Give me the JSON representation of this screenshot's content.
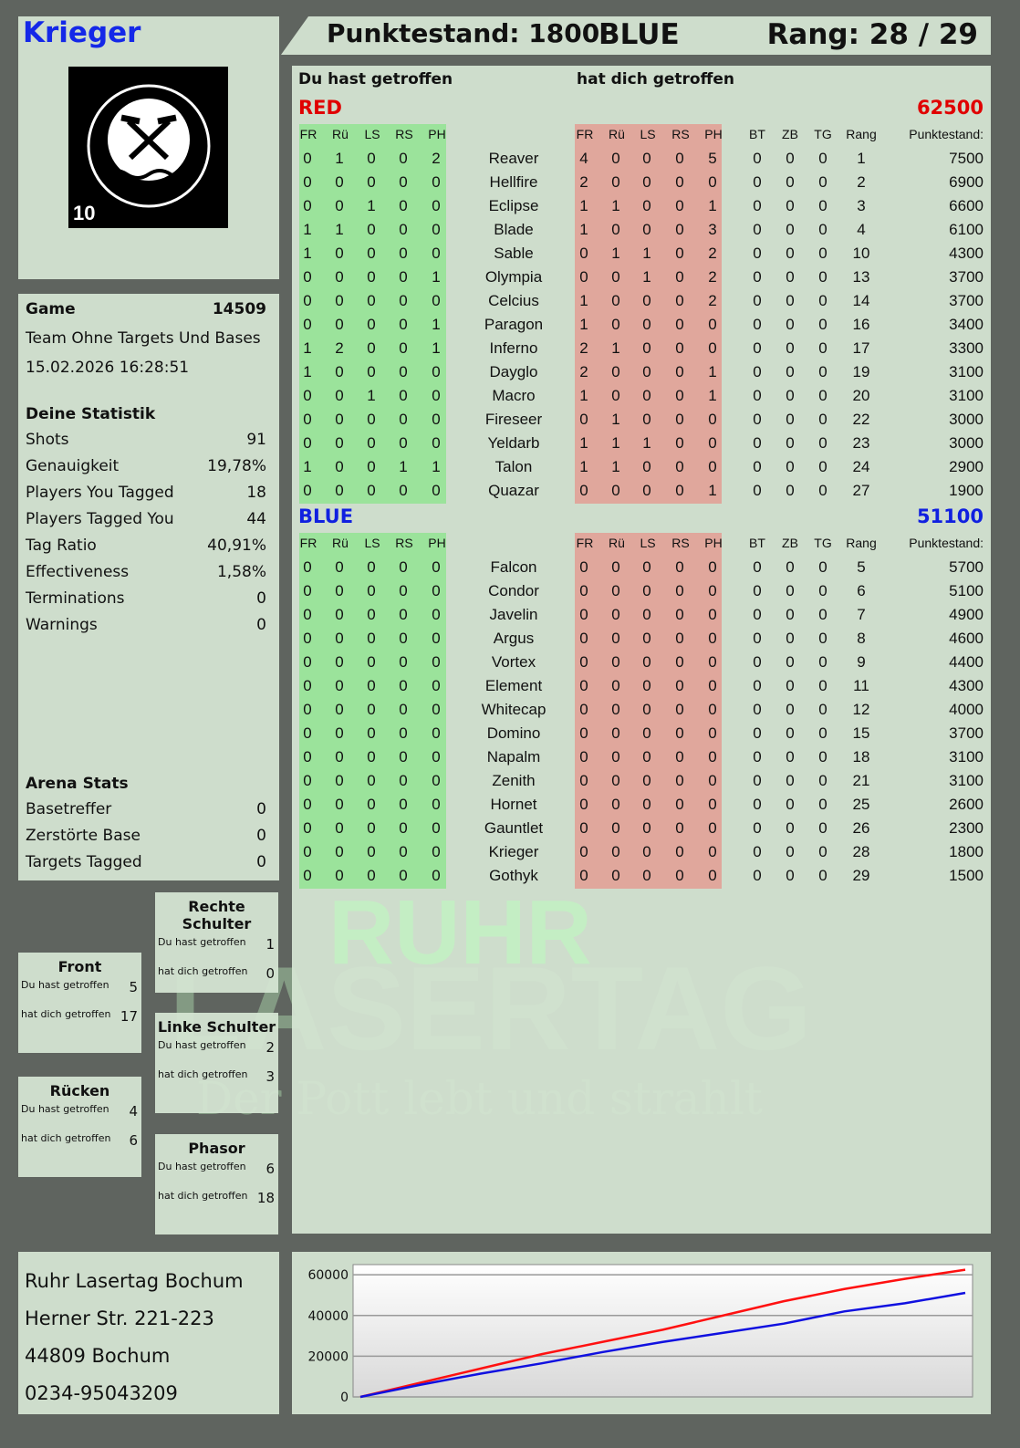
{
  "player": {
    "name": "Krieger",
    "logo_text": "RUHR LASERTAG",
    "logo_number": "10"
  },
  "topbar": {
    "score": "Punktestand: 1800",
    "team": "BLUE",
    "rank": "Rang: 28 / 29"
  },
  "colors": {
    "red": "#e00000",
    "blue": "#1020e0",
    "green_block": "#9be39b",
    "red_block": "#e0a79c"
  },
  "game": {
    "label": "Game",
    "id": "14509",
    "mode": "Team Ohne Targets Und Bases",
    "datetime": "15.02.2026 16:28:51"
  },
  "stats": {
    "title": "Deine Statistik",
    "items": [
      {
        "label": "Shots",
        "value": "91"
      },
      {
        "label": "Genauigkeit",
        "value": "19,78%"
      },
      {
        "label": "Players You Tagged",
        "value": "18"
      },
      {
        "label": "Players Tagged You",
        "value": "44"
      },
      {
        "label": "Tag Ratio",
        "value": "40,91%"
      },
      {
        "label": "Effectiveness",
        "value": "1,58%"
      },
      {
        "label": "Terminations",
        "value": "0"
      },
      {
        "label": "Warnings",
        "value": "0"
      }
    ]
  },
  "arena": {
    "title": "Arena Stats",
    "items": [
      {
        "label": "Basetreffer",
        "value": "0"
      },
      {
        "label": "Zerstörte Base",
        "value": "0"
      },
      {
        "label": "Targets Tagged",
        "value": "0"
      }
    ]
  },
  "hitboxes": [
    {
      "title": "Rechte Schulter",
      "you_label": "Du hast getroffen",
      "you": "1",
      "them_label": "hat dich getroffen",
      "them": "0"
    },
    {
      "title": "Front",
      "you_label": "Du hast getroffen",
      "you": "5",
      "them_label": "hat dich getroffen",
      "them": "17"
    },
    {
      "title": "Linke Schulter",
      "you_label": "Du hast getroffen",
      "you": "2",
      "them_label": "hat dich getroffen",
      "them": "3"
    },
    {
      "title": "Rücken",
      "you_label": "Du hast getroffen",
      "you": "4",
      "them_label": "hat dich getroffen",
      "them": "6"
    },
    {
      "title": "Phasor",
      "you_label": "Du hast getroffen",
      "you": "6",
      "them_label": "hat dich getroffen",
      "them": "18"
    }
  ],
  "address": [
    "Ruhr Lasertag Bochum",
    "Herner Str. 221-223",
    "44809 Bochum",
    "0234-95043209"
  ],
  "table": {
    "you_hit": "Du hast getroffen",
    "hit_you": "hat dich getroffen",
    "hit_cols": [
      "FR",
      "Rü",
      "LS",
      "RS",
      "PH"
    ],
    "extra_cols": [
      "BT",
      "ZB",
      "TG",
      "Rang",
      "Punktestand:"
    ]
  },
  "teams": [
    {
      "name": "RED",
      "score": "62500",
      "players": [
        {
          "name": "Reaver",
          "out": [
            "0",
            "1",
            "0",
            "0",
            "2"
          ],
          "in": [
            "4",
            "0",
            "0",
            "0",
            "5"
          ],
          "ex": [
            "0",
            "0",
            "0",
            "1",
            "7500"
          ]
        },
        {
          "name": "Hellfire",
          "out": [
            "0",
            "0",
            "0",
            "0",
            "0"
          ],
          "in": [
            "2",
            "0",
            "0",
            "0",
            "0"
          ],
          "ex": [
            "0",
            "0",
            "0",
            "2",
            "6900"
          ]
        },
        {
          "name": "Eclipse",
          "out": [
            "0",
            "0",
            "1",
            "0",
            "0"
          ],
          "in": [
            "1",
            "1",
            "0",
            "0",
            "1"
          ],
          "ex": [
            "0",
            "0",
            "0",
            "3",
            "6600"
          ]
        },
        {
          "name": "Blade",
          "out": [
            "1",
            "1",
            "0",
            "0",
            "0"
          ],
          "in": [
            "1",
            "0",
            "0",
            "0",
            "3"
          ],
          "ex": [
            "0",
            "0",
            "0",
            "4",
            "6100"
          ]
        },
        {
          "name": "Sable",
          "out": [
            "1",
            "0",
            "0",
            "0",
            "0"
          ],
          "in": [
            "0",
            "1",
            "1",
            "0",
            "2"
          ],
          "ex": [
            "0",
            "0",
            "0",
            "10",
            "4300"
          ]
        },
        {
          "name": "Olympia",
          "out": [
            "0",
            "0",
            "0",
            "0",
            "1"
          ],
          "in": [
            "0",
            "0",
            "1",
            "0",
            "2"
          ],
          "ex": [
            "0",
            "0",
            "0",
            "13",
            "3700"
          ]
        },
        {
          "name": "Celcius",
          "out": [
            "0",
            "0",
            "0",
            "0",
            "0"
          ],
          "in": [
            "1",
            "0",
            "0",
            "0",
            "2"
          ],
          "ex": [
            "0",
            "0",
            "0",
            "14",
            "3700"
          ]
        },
        {
          "name": "Paragon",
          "out": [
            "0",
            "0",
            "0",
            "0",
            "1"
          ],
          "in": [
            "1",
            "0",
            "0",
            "0",
            "0"
          ],
          "ex": [
            "0",
            "0",
            "0",
            "16",
            "3400"
          ]
        },
        {
          "name": "Inferno",
          "out": [
            "1",
            "2",
            "0",
            "0",
            "1"
          ],
          "in": [
            "2",
            "1",
            "0",
            "0",
            "0"
          ],
          "ex": [
            "0",
            "0",
            "0",
            "17",
            "3300"
          ]
        },
        {
          "name": "Dayglo",
          "out": [
            "1",
            "0",
            "0",
            "0",
            "0"
          ],
          "in": [
            "2",
            "0",
            "0",
            "0",
            "1"
          ],
          "ex": [
            "0",
            "0",
            "0",
            "19",
            "3100"
          ]
        },
        {
          "name": "Macro",
          "out": [
            "0",
            "0",
            "1",
            "0",
            "0"
          ],
          "in": [
            "1",
            "0",
            "0",
            "0",
            "1"
          ],
          "ex": [
            "0",
            "0",
            "0",
            "20",
            "3100"
          ]
        },
        {
          "name": "Fireseer",
          "out": [
            "0",
            "0",
            "0",
            "0",
            "0"
          ],
          "in": [
            "0",
            "1",
            "0",
            "0",
            "0"
          ],
          "ex": [
            "0",
            "0",
            "0",
            "22",
            "3000"
          ]
        },
        {
          "name": "Yeldarb",
          "out": [
            "0",
            "0",
            "0",
            "0",
            "0"
          ],
          "in": [
            "1",
            "1",
            "1",
            "0",
            "0"
          ],
          "ex": [
            "0",
            "0",
            "0",
            "23",
            "3000"
          ]
        },
        {
          "name": "Talon",
          "out": [
            "1",
            "0",
            "0",
            "1",
            "1"
          ],
          "in": [
            "1",
            "1",
            "0",
            "0",
            "0"
          ],
          "ex": [
            "0",
            "0",
            "0",
            "24",
            "2900"
          ]
        },
        {
          "name": "Quazar",
          "out": [
            "0",
            "0",
            "0",
            "0",
            "0"
          ],
          "in": [
            "0",
            "0",
            "0",
            "0",
            "1"
          ],
          "ex": [
            "0",
            "0",
            "0",
            "27",
            "1900"
          ]
        }
      ]
    },
    {
      "name": "BLUE",
      "score": "51100",
      "players": [
        {
          "name": "Falcon",
          "out": [
            "0",
            "0",
            "0",
            "0",
            "0"
          ],
          "in": [
            "0",
            "0",
            "0",
            "0",
            "0"
          ],
          "ex": [
            "0",
            "0",
            "0",
            "5",
            "5700"
          ]
        },
        {
          "name": "Condor",
          "out": [
            "0",
            "0",
            "0",
            "0",
            "0"
          ],
          "in": [
            "0",
            "0",
            "0",
            "0",
            "0"
          ],
          "ex": [
            "0",
            "0",
            "0",
            "6",
            "5100"
          ]
        },
        {
          "name": "Javelin",
          "out": [
            "0",
            "0",
            "0",
            "0",
            "0"
          ],
          "in": [
            "0",
            "0",
            "0",
            "0",
            "0"
          ],
          "ex": [
            "0",
            "0",
            "0",
            "7",
            "4900"
          ]
        },
        {
          "name": "Argus",
          "out": [
            "0",
            "0",
            "0",
            "0",
            "0"
          ],
          "in": [
            "0",
            "0",
            "0",
            "0",
            "0"
          ],
          "ex": [
            "0",
            "0",
            "0",
            "8",
            "4600"
          ]
        },
        {
          "name": "Vortex",
          "out": [
            "0",
            "0",
            "0",
            "0",
            "0"
          ],
          "in": [
            "0",
            "0",
            "0",
            "0",
            "0"
          ],
          "ex": [
            "0",
            "0",
            "0",
            "9",
            "4400"
          ]
        },
        {
          "name": "Element",
          "out": [
            "0",
            "0",
            "0",
            "0",
            "0"
          ],
          "in": [
            "0",
            "0",
            "0",
            "0",
            "0"
          ],
          "ex": [
            "0",
            "0",
            "0",
            "11",
            "4300"
          ]
        },
        {
          "name": "Whitecap",
          "out": [
            "0",
            "0",
            "0",
            "0",
            "0"
          ],
          "in": [
            "0",
            "0",
            "0",
            "0",
            "0"
          ],
          "ex": [
            "0",
            "0",
            "0",
            "12",
            "4000"
          ]
        },
        {
          "name": "Domino",
          "out": [
            "0",
            "0",
            "0",
            "0",
            "0"
          ],
          "in": [
            "0",
            "0",
            "0",
            "0",
            "0"
          ],
          "ex": [
            "0",
            "0",
            "0",
            "15",
            "3700"
          ]
        },
        {
          "name": "Napalm",
          "out": [
            "0",
            "0",
            "0",
            "0",
            "0"
          ],
          "in": [
            "0",
            "0",
            "0",
            "0",
            "0"
          ],
          "ex": [
            "0",
            "0",
            "0",
            "18",
            "3100"
          ]
        },
        {
          "name": "Zenith",
          "out": [
            "0",
            "0",
            "0",
            "0",
            "0"
          ],
          "in": [
            "0",
            "0",
            "0",
            "0",
            "0"
          ],
          "ex": [
            "0",
            "0",
            "0",
            "21",
            "3100"
          ]
        },
        {
          "name": "Hornet",
          "out": [
            "0",
            "0",
            "0",
            "0",
            "0"
          ],
          "in": [
            "0",
            "0",
            "0",
            "0",
            "0"
          ],
          "ex": [
            "0",
            "0",
            "0",
            "25",
            "2600"
          ]
        },
        {
          "name": "Gauntlet",
          "out": [
            "0",
            "0",
            "0",
            "0",
            "0"
          ],
          "in": [
            "0",
            "0",
            "0",
            "0",
            "0"
          ],
          "ex": [
            "0",
            "0",
            "0",
            "26",
            "2300"
          ]
        },
        {
          "name": "Krieger",
          "out": [
            "0",
            "0",
            "0",
            "0",
            "0"
          ],
          "in": [
            "0",
            "0",
            "0",
            "0",
            "0"
          ],
          "ex": [
            "0",
            "0",
            "0",
            "28",
            "1800"
          ]
        },
        {
          "name": "Gothyk",
          "out": [
            "0",
            "0",
            "0",
            "0",
            "0"
          ],
          "in": [
            "0",
            "0",
            "0",
            "0",
            "0"
          ],
          "ex": [
            "0",
            "0",
            "0",
            "29",
            "1500"
          ]
        }
      ]
    }
  ],
  "watermark": {
    "line1": "RUHR",
    "line2": "LASERTAG",
    "line3": "Der Pott lebt und strahlt"
  },
  "chart_data": {
    "type": "line",
    "ylim": [
      0,
      65000
    ],
    "yticks": [
      "0",
      "20000",
      "40000",
      "60000"
    ],
    "grid": true,
    "x": [
      0,
      1,
      2,
      3,
      4,
      5,
      6,
      7,
      8,
      9,
      10
    ],
    "series": [
      {
        "color": "#ff1010",
        "values": [
          0,
          7000,
          14000,
          21000,
          27000,
          33000,
          40000,
          47000,
          53000,
          58000,
          62500
        ]
      },
      {
        "color": "#1010e0",
        "values": [
          0,
          6000,
          11500,
          16500,
          22000,
          27000,
          31500,
          36000,
          42000,
          46000,
          51100
        ]
      }
    ]
  }
}
